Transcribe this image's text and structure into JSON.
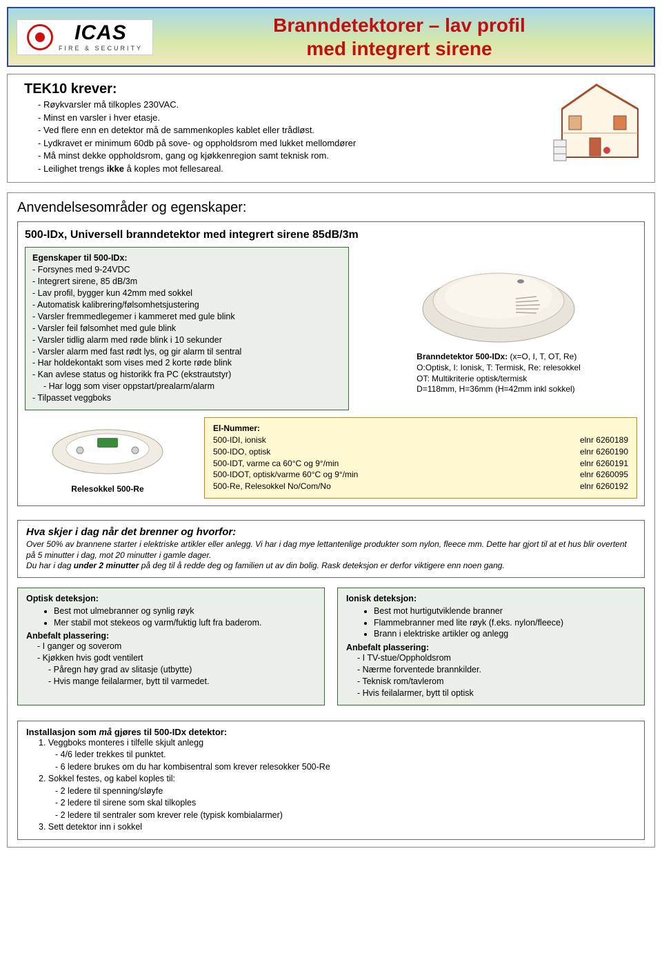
{
  "header": {
    "logo_main": "ICAS",
    "logo_sub": "FIRE & SECURITY",
    "title_line1": "Branndetektorer – lav profil",
    "title_line2": "med integrert sirene"
  },
  "tek": {
    "title": "TEK10 krever:",
    "items": [
      "- Røykvarsler må tilkoples 230VAC.",
      "- Minst en varsler i hver etasje.",
      "- Ved flere enn en detektor må de sammenkoples kablet eller trådløst.",
      "- Lydkravet er minimum 60db på sove- og oppholdsrom med lukket mellomdører",
      "- Må minst dekke oppholdsrom, gang og kjøkkenregion samt teknisk rom.",
      "- Leilighet trengs ikke å koples mot fellesareal."
    ],
    "ikke_bold": "ikke"
  },
  "area": {
    "title": "Anvendelsesområder og egenskaper:",
    "sub_title": "500-IDx, Universell branndetektor med integrert sirene 85dB/3m",
    "props_header": "Egenskaper til 500-IDx:",
    "props": [
      "- Forsynes med 9-24VDC",
      "- Integrert sirene, 85 dB/3m",
      "- Lav profil, bygger kun 42mm med sokkel",
      "- Automatisk kalibrering/følsomhetsjustering",
      "- Varsler fremmedlegemer i kammeret med gule blink",
      "- Varsler feil følsomhet med gule blink",
      "- Varsler tidlig alarm med røde blink i 10 sekunder",
      "- Varsler alarm med fast rødt lys, og gir alarm til sentral",
      "- Har holdekontakt som vises med 2 korte røde blink",
      "- Kan avlese status og historikk fra PC (ekstrautstyr)",
      "   - Har logg som viser oppstart/prealarm/alarm",
      "- Tilpasset veggboks"
    ],
    "det_caption_b": "Branndetektor 500-IDx:",
    "det_caption_rest": " (x=O, I, T, OT, Re)",
    "det_caption_l2": "O:Optisk, I: Ionisk, T: Termisk, Re: relesokkel",
    "det_caption_l3": "OT: Multikriterie optisk/termisk",
    "det_caption_l4": "D=118mm, H=36mm (H=42mm inkl sokkel)",
    "socket_caption": "Relesokkel 500-Re",
    "elnr_title": "El-Nummer:",
    "elnr_rows": [
      {
        "l": "500-IDI, ionisk",
        "r": "elnr 6260189"
      },
      {
        "l": "500-IDO, optisk",
        "r": "elnr 6260190"
      },
      {
        "l": "500-IDT, varme ca 60°C og 9°/min",
        "r": "elnr 6260191"
      },
      {
        "l": "500-IDOT, optisk/varme 60°C og 9°/min",
        "r": "elnr 6260095"
      },
      {
        "l": "500-Re, Relesokkel No/Com/No",
        "r": "elnr 6260192"
      }
    ]
  },
  "info": {
    "title": "Hva skjer i dag når det brenner og hvorfor:",
    "body1": "Over 50% av brannene starter i elektriske artikler eller anlegg. Vi har i dag mye lettantenlige produkter som nylon, fleece mm. Dette har gjort til at et hus blir overtent på 5 minutter i dag, mot 20 minutter i gamle dager.",
    "body2a": "Du har i dag ",
    "body2b": "under 2 minutter",
    "body2c": " på deg til å redde deg og familien ut av din bolig. Rask deteksjon er derfor viktigere enn noen gang."
  },
  "optisk": {
    "title": "Optisk deteksjon:",
    "bullets": [
      "Best mot ulmebranner og synlig røyk",
      "Mer stabil mot stekeos og varm/fuktig luft fra baderom."
    ],
    "sub": "Anbefalt plassering:",
    "lines": [
      "- I ganger og soverom",
      "- Kjøkken hvis godt ventilert"
    ],
    "lines2": [
      "- Påregn høy grad av slitasje (utbytte)",
      "- Hvis mange feilalarmer, bytt til varmedet."
    ]
  },
  "ionisk": {
    "title": "Ionisk deteksjon:",
    "bullets": [
      "Best mot hurtigutviklende branner",
      "Flammebranner med lite røyk (f.eks. nylon/fleece)",
      "Brann i elektriske artikler og anlegg"
    ],
    "sub": "Anbefalt plassering:",
    "lines": [
      "- I TV-stue/Oppholdsrom",
      "- Nærme forventede brannkilder.",
      "- Teknisk rom/tavlerom",
      "- Hvis feilalarmer, bytt til optisk"
    ]
  },
  "install": {
    "title_a": "Installasjon som ",
    "title_b": "må",
    "title_c": " gjøres til 500-IDx detektor:",
    "lines": [
      {
        "t": "1. Veggboks monteres i tilfelle skjult anlegg",
        "lvl": 1
      },
      {
        "t": "- 4/6 leder trekkes til punktet.",
        "lvl": 2
      },
      {
        "t": "- 6 ledere brukes om du har kombisentral som krever relesokker 500-Re",
        "lvl": 2
      },
      {
        "t": "2. Sokkel festes, og kabel koples til:",
        "lvl": 1
      },
      {
        "t": "- 2 ledere til spenning/sløyfe",
        "lvl": 2
      },
      {
        "t": "- 2 ledere til sirene som skal tilkoples",
        "lvl": 2
      },
      {
        "t": "- 2 ledere til sentraler som krever rele (typisk kombialarmer)",
        "lvl": 2
      },
      {
        "t": "3. Sett detektor inn i sokkel",
        "lvl": 1
      }
    ]
  },
  "colors": {
    "banner_border": "#2a4a8a",
    "red": "#c01010",
    "green_border": "#3a6a3a",
    "green_bg": "#e8f0e8",
    "yellow_border": "#cc8800",
    "yellow_bg": "#fff8d0"
  }
}
